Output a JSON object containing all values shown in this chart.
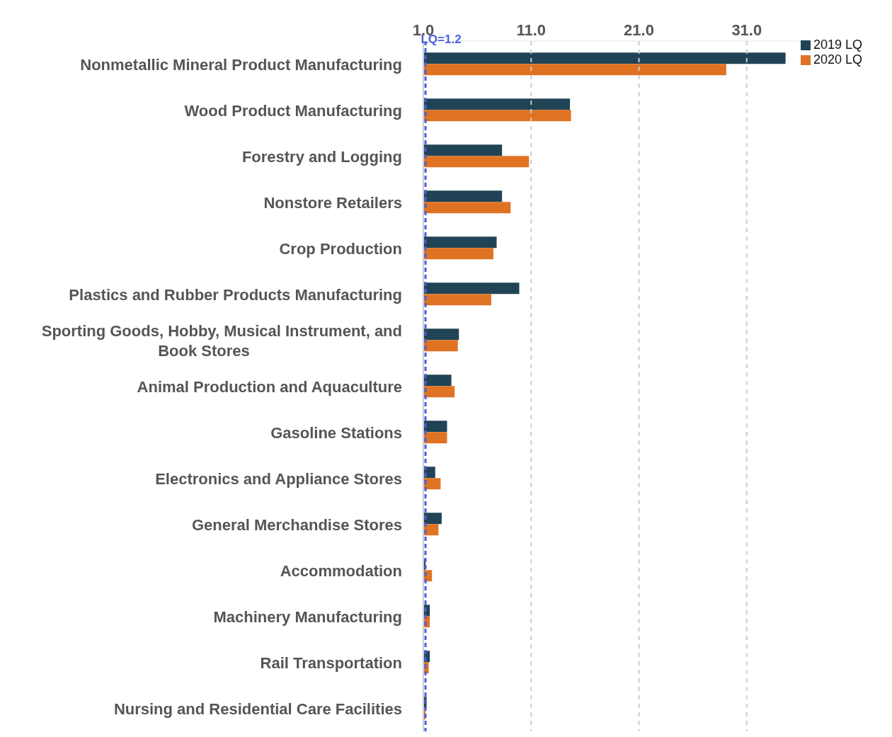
{
  "chart_data": {
    "type": "bar",
    "orientation": "horizontal",
    "categories": [
      "Nonmetallic Mineral Product Manufacturing",
      "Wood Product Manufacturing",
      "Forestry and Logging",
      "Nonstore Retailers",
      "Crop Production",
      "Plastics and Rubber Products Manufacturing",
      "Sporting Goods, Hobby, Musical Instrument, and Book Stores",
      "Animal Production and Aquaculture",
      "Gasoline Stations",
      "Electronics and Appliance Stores",
      "General Merchandise Stores",
      "Accommodation",
      "Machinery Manufacturing",
      "Rail Transportation",
      "Nursing and Residential Care Facilities"
    ],
    "series": [
      {
        "name": "2019 LQ",
        "color": "#204455",
        "values": [
          34.6,
          14.6,
          8.3,
          8.3,
          7.8,
          9.9,
          4.3,
          3.6,
          3.2,
          2.1,
          2.7,
          1.2,
          1.6,
          1.6,
          1.3
        ]
      },
      {
        "name": "2020 LQ",
        "color": "#e07323",
        "values": [
          29.1,
          14.7,
          10.8,
          9.1,
          7.5,
          7.3,
          4.2,
          3.9,
          3.2,
          2.6,
          2.4,
          1.8,
          1.6,
          1.5,
          1.2
        ]
      }
    ],
    "xlim": [
      1,
      36
    ],
    "xticks": [
      {
        "value": 1,
        "label": "1.0"
      },
      {
        "value": 11,
        "label": "11.0"
      },
      {
        "value": 21,
        "label": "21.0"
      },
      {
        "value": 31,
        "label": "31.0"
      }
    ],
    "ref_lines": [
      {
        "axis": "x",
        "value": 1.2,
        "label": "LQ=1.2",
        "color": "#4a5fe0",
        "line_style": "dashed"
      }
    ],
    "grid": "x",
    "legend": "top right"
  }
}
